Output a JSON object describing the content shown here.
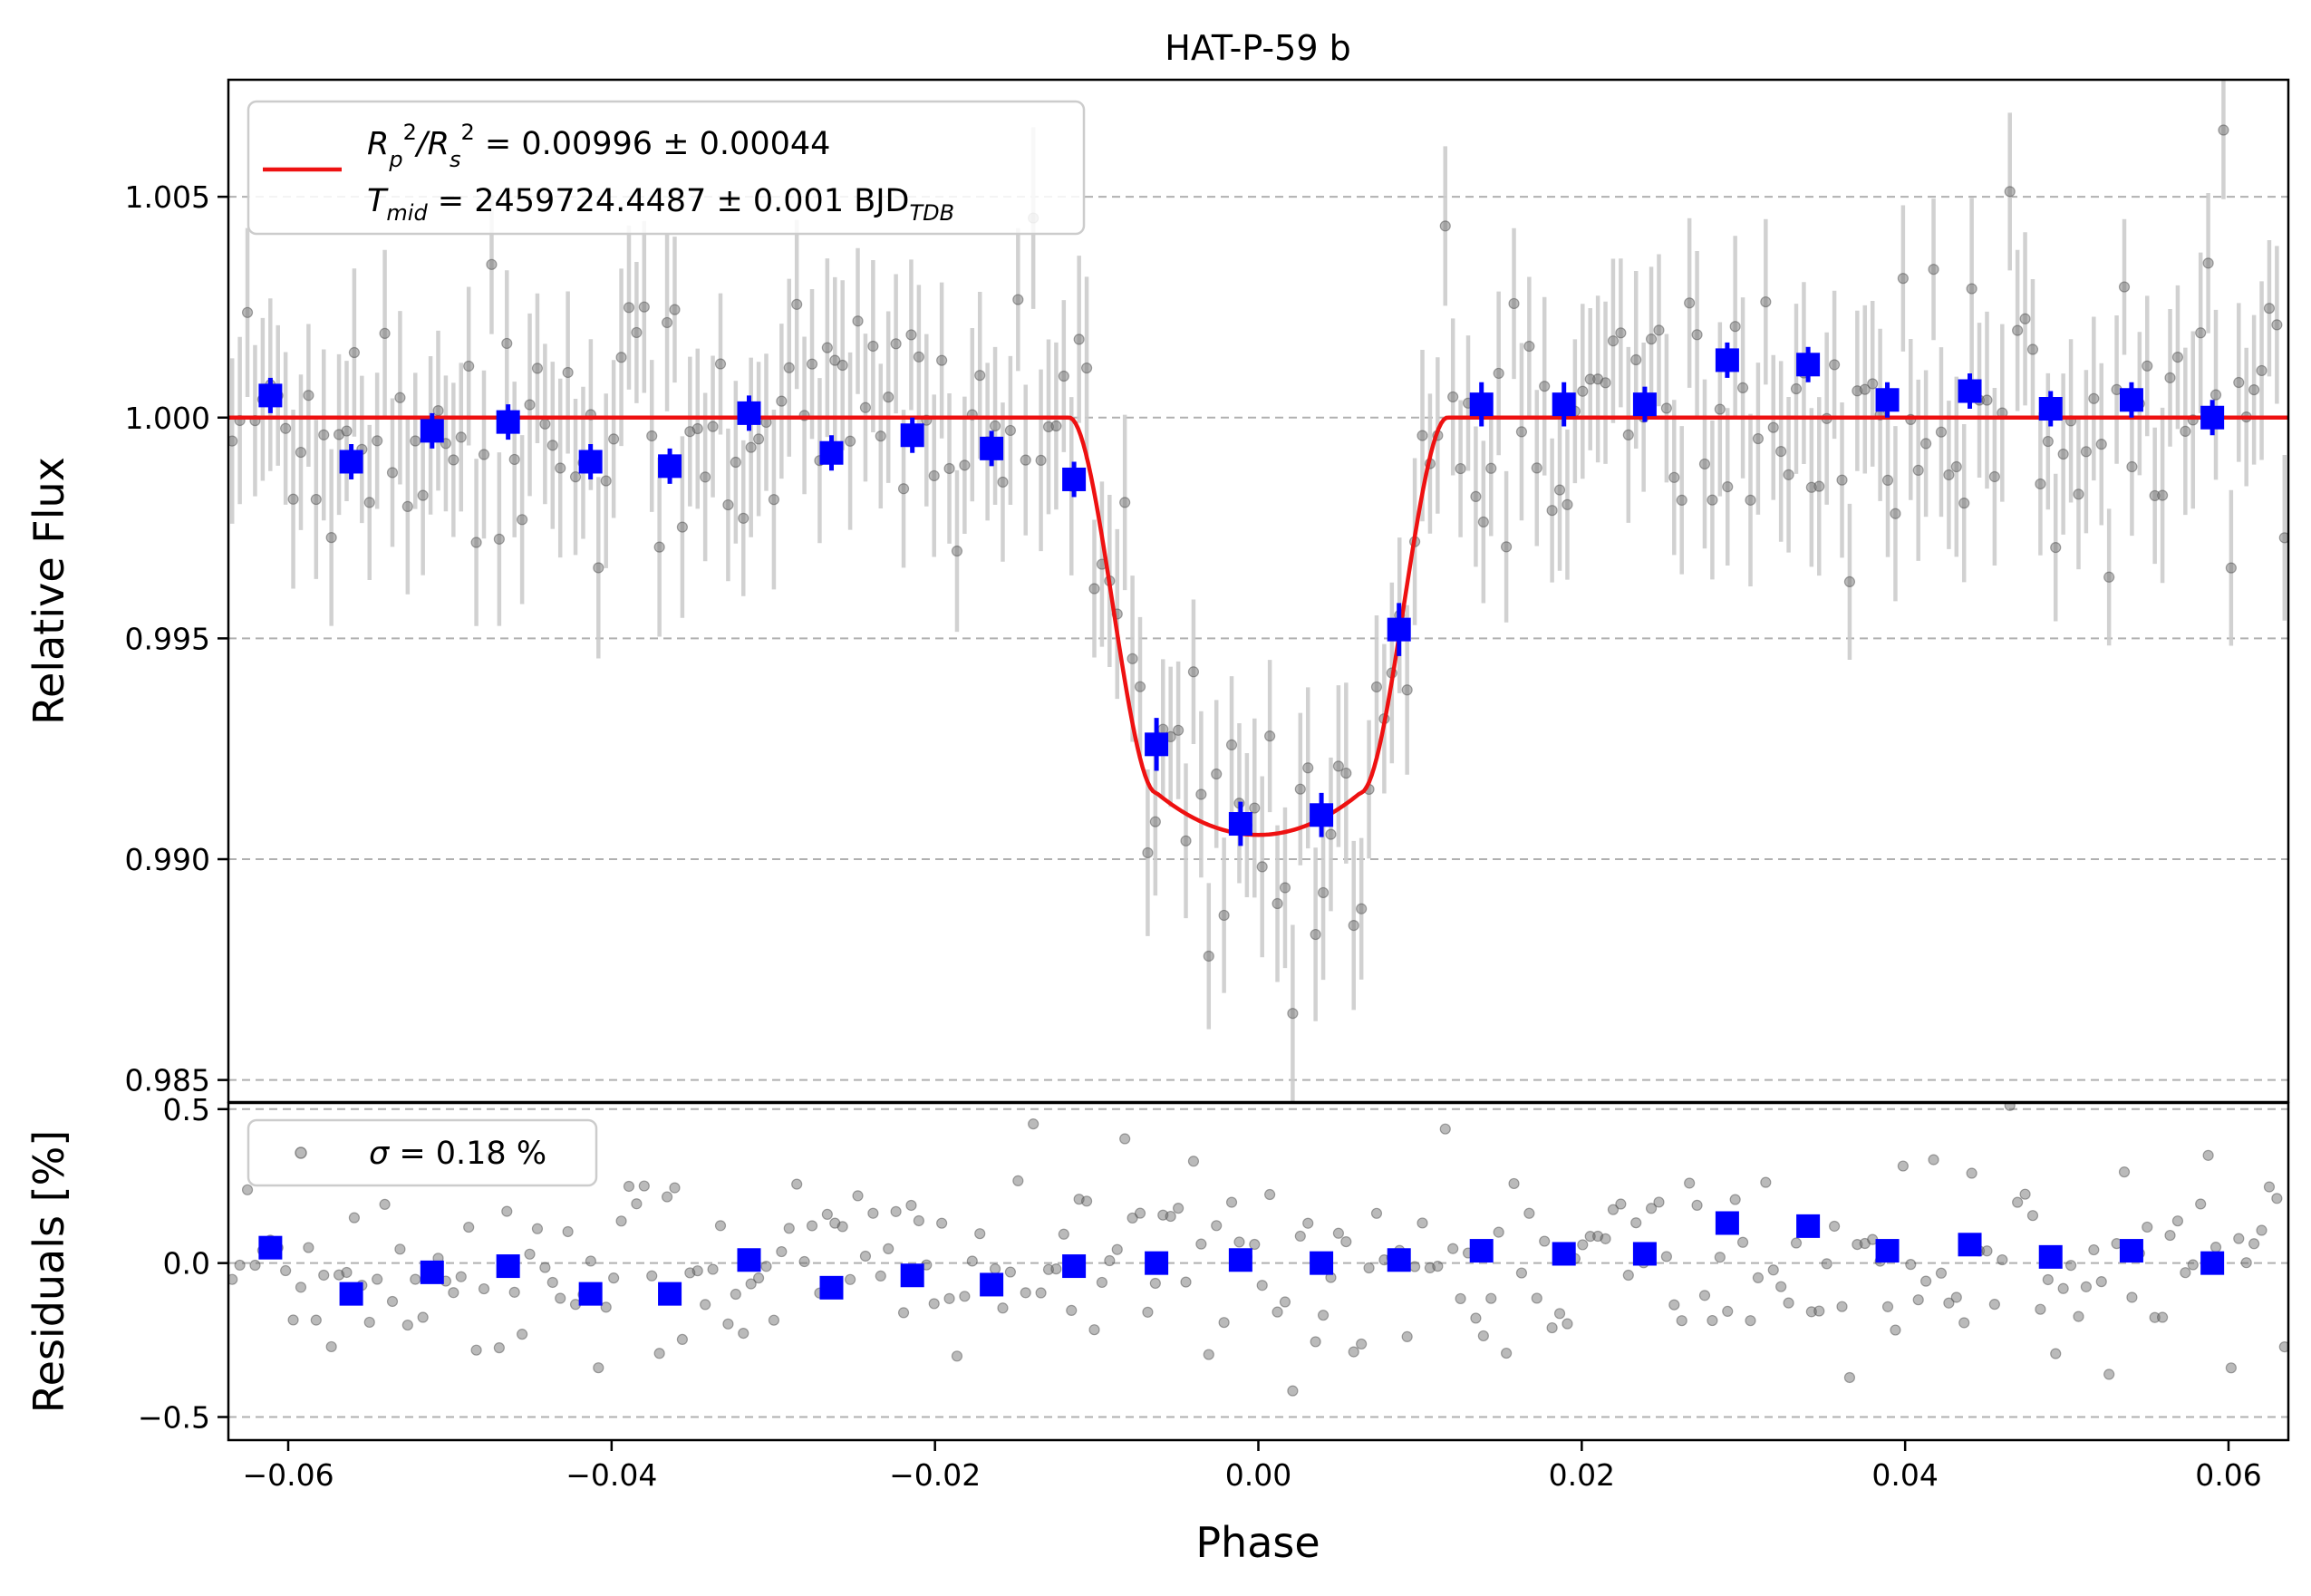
{
  "chart_data": [
    {
      "type": "scatter",
      "panel": "top",
      "title": "HAT-P-59 b",
      "ylabel": "Relative Flux",
      "xlim": [
        -0.0637,
        0.0637
      ],
      "ylim": [
        0.9845,
        1.00765
      ],
      "yticks": [
        0.985,
        0.99,
        0.995,
        1.0,
        1.005
      ],
      "ytick_labels": [
        "0.985",
        "0.990",
        "0.995",
        "1.000",
        "1.005"
      ],
      "grid": "horizontal dashed",
      "legend": {
        "placement": "upper-left",
        "line_label_1": "R_p^2/R_s^2 = 0.00996 ± 0.00044",
        "line_label_2": "T_mid = 2459724.4487 ± 0.001 BJD_TDB",
        "label_1_parts": [
          "R",
          "p",
          "2",
          "/R",
          "s",
          "2",
          " = 0.00996 ± 0.00044"
        ],
        "label_2_parts": [
          "T",
          "mid",
          " = 2459724.4487 ± 0.001 BJD",
          "TDB"
        ]
      },
      "model": {
        "name": "transit model",
        "color": "#ee1111",
        "depth": 0.00996,
        "t_ingress_start": -0.0117,
        "t_full_start": -0.0063,
        "t_full_end": 0.0063,
        "t_egress_end": 0.0117,
        "min_flux": 0.99055,
        "limb_curvature": 0.00095
      },
      "binned": {
        "color": "#0000ff",
        "x": [
          -0.0611,
          -0.0561,
          -0.0511,
          -0.0464,
          -0.0413,
          -0.0364,
          -0.0315,
          -0.0264,
          -0.0214,
          -0.0165,
          -0.0114,
          -0.0063,
          -0.0011,
          0.0039,
          0.0087,
          0.0138,
          0.0189,
          0.0239,
          0.029,
          0.034,
          0.0389,
          0.044,
          0.049,
          0.054,
          0.059
        ],
        "y": [
          1.0005,
          0.999,
          0.9997,
          0.9999,
          0.999,
          0.9989,
          1.0001,
          0.9992,
          0.9996,
          0.9993,
          0.9986,
          0.9926,
          0.9908,
          0.991,
          0.9952,
          1.0003,
          1.0003,
          1.0003,
          1.0013,
          1.0012,
          1.0004,
          1.0006,
          1.0002,
          1.0004,
          1.0
        ],
        "yerr": [
          0.0004,
          0.0004,
          0.0004,
          0.0004,
          0.0004,
          0.0004,
          0.0004,
          0.0004,
          0.0004,
          0.0004,
          0.0004,
          0.0006,
          0.0005,
          0.0005,
          0.0006,
          0.0005,
          0.0005,
          0.0004,
          0.0004,
          0.0004,
          0.0004,
          0.0004,
          0.0004,
          0.0004,
          0.0004
        ]
      },
      "raw_points": {
        "color": "#666666",
        "errbar_color": "#cccccc",
        "count": 270,
        "x_start": -0.0637,
        "x_end": 0.0637,
        "scatter": 0.0018,
        "errbar_halfwidth": 0.0018
      }
    },
    {
      "type": "scatter",
      "panel": "bottom",
      "xlabel": "Phase",
      "ylabel": "Residuals [%]",
      "xlim": [
        -0.0637,
        0.0637
      ],
      "ylim": [
        -0.575,
        0.52
      ],
      "yticks": [
        -0.5,
        0.0,
        0.5
      ],
      "ytick_labels": [
        "−0.5",
        "0.0",
        "0.5"
      ],
      "xticks": [
        -0.06,
        -0.04,
        -0.02,
        0.0,
        0.02,
        0.04,
        0.06
      ],
      "xtick_labels": [
        "−0.06",
        "−0.04",
        "−0.02",
        "0.00",
        "0.02",
        "0.04",
        "0.06"
      ],
      "grid": "horizontal dashed",
      "legend": {
        "placement": "upper-left",
        "label": "σ = 0.18 %",
        "symbol": "σ",
        "rest": " = 0.18 %"
      },
      "binned": {
        "color": "#0000ff",
        "x": [
          -0.0611,
          -0.0561,
          -0.0511,
          -0.0464,
          -0.0413,
          -0.0364,
          -0.0315,
          -0.0264,
          -0.0214,
          -0.0165,
          -0.0114,
          -0.0063,
          -0.0011,
          0.0039,
          0.0087,
          0.0138,
          0.0189,
          0.0239,
          0.029,
          0.034,
          0.0389,
          0.044,
          0.049,
          0.054,
          0.059
        ],
        "y": [
          0.05,
          -0.1,
          -0.03,
          -0.01,
          -0.1,
          -0.1,
          0.01,
          -0.08,
          -0.04,
          -0.07,
          -0.01,
          0.0,
          0.01,
          0.0,
          0.01,
          0.04,
          0.03,
          0.03,
          0.13,
          0.12,
          0.04,
          0.06,
          0.02,
          0.04,
          0.0
        ]
      },
      "raw_points": {
        "color": "#666666",
        "scatter": 0.18
      }
    }
  ]
}
